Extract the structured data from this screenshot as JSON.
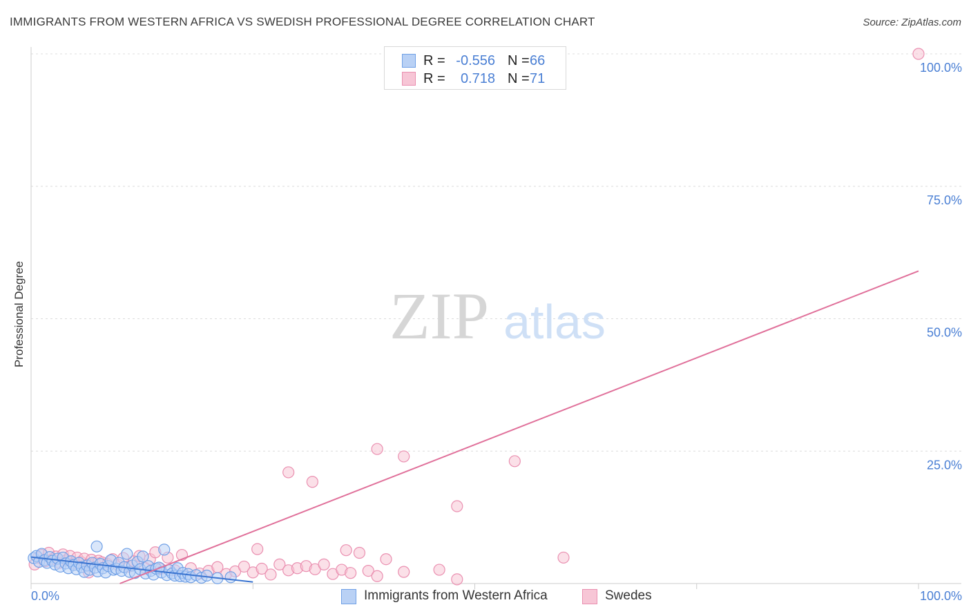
{
  "header": {
    "title": "IMMIGRANTS FROM WESTERN AFRICA VS SWEDISH PROFESSIONAL DEGREE CORRELATION CHART",
    "source": "Source: ZipAtlas.com"
  },
  "watermark": {
    "zip": "ZIP",
    "atlas": "atlas"
  },
  "colors": {
    "blue": "#6fa0e6",
    "blue_fill": "#b9d1f5",
    "blue_line": "#3a74d0",
    "pink": "#ea8fb0",
    "pink_fill": "#f7c6d6",
    "pink_line": "#e0709a",
    "tick_text": "#4a7fd4",
    "grid": "#dcdcdc"
  },
  "stats": [
    {
      "r_label": "R =",
      "r_value": "-0.556",
      "n_label": "N =",
      "n_value": "66",
      "series": "blue"
    },
    {
      "r_label": "R =",
      "r_value": "0.718",
      "n_label": "N =",
      "n_value": "71",
      "series": "pink"
    }
  ],
  "legend": [
    {
      "label": "Immigrants from Western Africa",
      "series": "blue"
    },
    {
      "label": "Swedes",
      "series": "pink"
    }
  ],
  "chart_data": {
    "type": "scatter",
    "title": "IMMIGRANTS FROM WESTERN AFRICA VS SWEDISH PROFESSIONAL DEGREE CORRELATION CHART",
    "xlabel": "",
    "ylabel": "Professional Degree",
    "xlim": [
      0,
      100
    ],
    "ylim": [
      0,
      100
    ],
    "x_tick_labels": [
      "0.0%",
      "100.0%"
    ],
    "y_ticks": [
      {
        "value": 100,
        "label": "100.0%"
      },
      {
        "value": 75,
        "label": "75.0%"
      },
      {
        "value": 50,
        "label": "50.0%"
      },
      {
        "value": 25,
        "label": "25.0%"
      }
    ],
    "grid": true,
    "series": [
      {
        "name": "Immigrants from Western Africa",
        "color_key": "blue",
        "trend": {
          "x": [
            0.0,
            25.0
          ],
          "y": [
            5.0,
            0.3
          ]
        },
        "points": [
          [
            0.3,
            4.8
          ],
          [
            0.6,
            5.2
          ],
          [
            0.9,
            4.1
          ],
          [
            1.2,
            5.6
          ],
          [
            1.5,
            4.4
          ],
          [
            1.8,
            3.9
          ],
          [
            2.1,
            5.0
          ],
          [
            2.4,
            4.3
          ],
          [
            2.7,
            3.6
          ],
          [
            3.0,
            4.7
          ],
          [
            3.3,
            3.2
          ],
          [
            3.6,
            4.9
          ],
          [
            3.9,
            3.8
          ],
          [
            4.2,
            2.9
          ],
          [
            4.5,
            4.2
          ],
          [
            4.8,
            3.5
          ],
          [
            5.1,
            2.7
          ],
          [
            5.4,
            3.9
          ],
          [
            5.7,
            3.1
          ],
          [
            6.0,
            2.2
          ],
          [
            6.3,
            3.4
          ],
          [
            6.6,
            2.6
          ],
          [
            6.9,
            3.9
          ],
          [
            7.2,
            3.0
          ],
          [
            7.5,
            2.3
          ],
          [
            7.8,
            3.7
          ],
          [
            8.1,
            2.9
          ],
          [
            8.4,
            2.1
          ],
          [
            8.7,
            3.3
          ],
          [
            9.0,
            4.4
          ],
          [
            9.3,
            2.6
          ],
          [
            9.6,
            2.8
          ],
          [
            9.9,
            3.9
          ],
          [
            10.2,
            2.4
          ],
          [
            10.5,
            3.1
          ],
          [
            10.8,
            5.6
          ],
          [
            11.1,
            2.2
          ],
          [
            11.4,
            3.4
          ],
          [
            11.7,
            2.0
          ],
          [
            12.0,
            4.1
          ],
          [
            12.3,
            2.7
          ],
          [
            12.6,
            5.1
          ],
          [
            12.9,
            1.9
          ],
          [
            13.2,
            3.3
          ],
          [
            13.5,
            2.4
          ],
          [
            13.8,
            1.7
          ],
          [
            14.1,
            2.8
          ],
          [
            14.4,
            3.0
          ],
          [
            14.7,
            2.1
          ],
          [
            15.0,
            6.4
          ],
          [
            15.3,
            1.6
          ],
          [
            15.6,
            2.5
          ],
          [
            15.9,
            1.9
          ],
          [
            16.2,
            1.5
          ],
          [
            16.5,
            2.9
          ],
          [
            16.8,
            1.4
          ],
          [
            17.1,
            2.0
          ],
          [
            17.4,
            1.3
          ],
          [
            17.7,
            1.8
          ],
          [
            18.0,
            1.2
          ],
          [
            18.6,
            1.6
          ],
          [
            19.2,
            1.1
          ],
          [
            19.8,
            1.5
          ],
          [
            21.0,
            1.0
          ],
          [
            22.5,
            1.2
          ],
          [
            7.4,
            7.0
          ]
        ]
      },
      {
        "name": "Swedes",
        "color_key": "pink",
        "trend": {
          "x": [
            10.0,
            100.0
          ],
          "y": [
            0.0,
            59.0
          ]
        },
        "points": [
          [
            0.4,
            3.6
          ],
          [
            0.8,
            4.9
          ],
          [
            1.2,
            5.4
          ],
          [
            1.6,
            4.2
          ],
          [
            2.0,
            5.8
          ],
          [
            2.4,
            4.6
          ],
          [
            2.8,
            5.1
          ],
          [
            3.2,
            3.9
          ],
          [
            3.6,
            5.5
          ],
          [
            4.0,
            4.4
          ],
          [
            4.4,
            5.2
          ],
          [
            4.8,
            3.8
          ],
          [
            5.2,
            4.9
          ],
          [
            5.6,
            4.1
          ],
          [
            6.0,
            4.7
          ],
          [
            6.4,
            3.6
          ],
          [
            6.8,
            4.5
          ],
          [
            7.2,
            3.9
          ],
          [
            7.6,
            4.3
          ],
          [
            8.0,
            4.0
          ],
          [
            8.6,
            3.7
          ],
          [
            9.2,
            4.6
          ],
          [
            9.8,
            3.5
          ],
          [
            10.4,
            4.8
          ],
          [
            11.0,
            3.2
          ],
          [
            11.6,
            4.2
          ],
          [
            12.2,
            5.2
          ],
          [
            12.8,
            3.0
          ],
          [
            13.4,
            4.6
          ],
          [
            14.0,
            5.9
          ],
          [
            14.6,
            2.8
          ],
          [
            15.4,
            4.9
          ],
          [
            16.2,
            2.5
          ],
          [
            17.0,
            5.4
          ],
          [
            18.0,
            2.9
          ],
          [
            19.0,
            1.9
          ],
          [
            20.0,
            2.4
          ],
          [
            21.0,
            3.1
          ],
          [
            22.0,
            1.8
          ],
          [
            23.0,
            2.3
          ],
          [
            24.0,
            3.2
          ],
          [
            25.0,
            2.1
          ],
          [
            26.0,
            2.8
          ],
          [
            27.0,
            1.7
          ],
          [
            28.0,
            3.6
          ],
          [
            29.0,
            2.5
          ],
          [
            30.0,
            2.9
          ],
          [
            31.0,
            3.3
          ],
          [
            32.0,
            2.7
          ],
          [
            33.0,
            3.6
          ],
          [
            34.0,
            1.8
          ],
          [
            35.0,
            2.6
          ],
          [
            36.0,
            2.0
          ],
          [
            37.0,
            5.8
          ],
          [
            38.0,
            2.4
          ],
          [
            39.0,
            1.4
          ],
          [
            40.0,
            4.6
          ],
          [
            42.0,
            2.2
          ],
          [
            46.0,
            2.6
          ],
          [
            48.0,
            0.8
          ],
          [
            6.5,
            2.1
          ],
          [
            25.5,
            6.5
          ],
          [
            29.0,
            21.0
          ],
          [
            31.7,
            19.2
          ],
          [
            35.5,
            6.3
          ],
          [
            39.0,
            25.4
          ],
          [
            42.0,
            24.0
          ],
          [
            48.0,
            14.6
          ],
          [
            54.5,
            23.1
          ],
          [
            60.0,
            4.9
          ],
          [
            100.0,
            100.0
          ]
        ]
      }
    ]
  }
}
